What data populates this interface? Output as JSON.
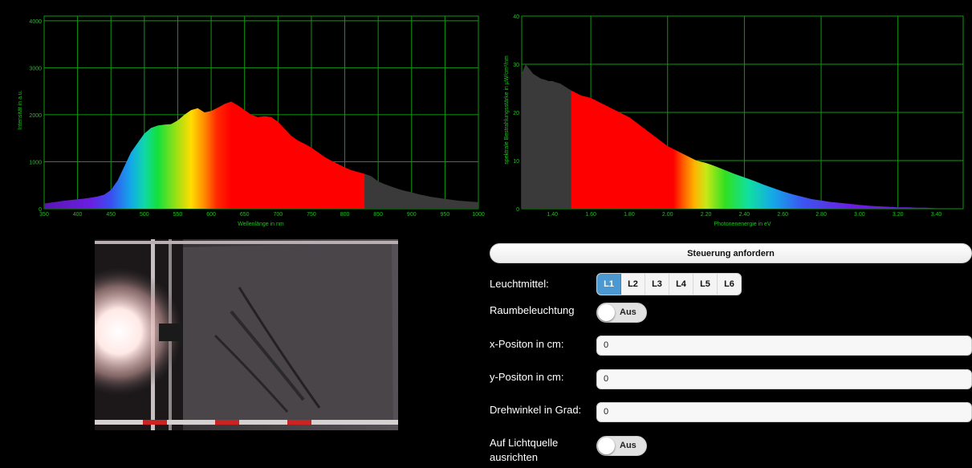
{
  "chart_data": [
    {
      "type": "area",
      "title": "",
      "xlabel": "Wellenlänge in nm",
      "ylabel": "Intensität in a.u.",
      "xlim": [
        350,
        1000
      ],
      "ylim": [
        0,
        4100
      ],
      "x_ticks": [
        "350",
        "400",
        "450",
        "500",
        "550",
        "600",
        "650",
        "700",
        "750",
        "800",
        "850",
        "900",
        "950",
        "1000"
      ],
      "y_ticks": [
        "0",
        "1000",
        "2000",
        "3000",
        "4000"
      ],
      "grid": true,
      "fill": "visible-spectrum rainbow gradient, dark grey beyond 830 nm",
      "x": [
        350,
        360,
        370,
        380,
        390,
        400,
        410,
        420,
        430,
        440,
        450,
        460,
        470,
        480,
        490,
        500,
        510,
        520,
        530,
        540,
        550,
        560,
        570,
        580,
        590,
        600,
        610,
        620,
        630,
        640,
        650,
        660,
        670,
        680,
        690,
        700,
        710,
        720,
        730,
        740,
        750,
        760,
        770,
        780,
        790,
        800,
        810,
        820,
        830,
        840,
        850,
        860,
        870,
        880,
        890,
        900,
        910,
        920,
        930,
        940,
        950,
        960,
        970,
        980,
        990,
        1000
      ],
      "values": [
        110,
        130,
        150,
        170,
        185,
        200,
        215,
        235,
        260,
        300,
        400,
        600,
        900,
        1200,
        1400,
        1600,
        1720,
        1770,
        1790,
        1800,
        1880,
        2000,
        2100,
        2140,
        2050,
        2080,
        2150,
        2230,
        2280,
        2200,
        2100,
        2000,
        1950,
        1970,
        1950,
        1850,
        1700,
        1550,
        1450,
        1380,
        1300,
        1200,
        1100,
        1020,
        950,
        880,
        820,
        780,
        740,
        690,
        580,
        520,
        470,
        420,
        380,
        350,
        310,
        280,
        250,
        230,
        210,
        190,
        170,
        160,
        150,
        140
      ]
    },
    {
      "type": "area",
      "title": "",
      "xlabel": "Photonenenergie in eV",
      "ylabel": "spektrale Bestrahlungsstärke in µW/cm²/nm",
      "xlim": [
        1.24,
        3.54
      ],
      "ylim": [
        0,
        40
      ],
      "x_ticks": [
        "1.40",
        "1.60",
        "1.80",
        "2.00",
        "2.20",
        "2.40",
        "2.60",
        "2.80",
        "3.00",
        "3.20",
        "3.40"
      ],
      "y_ticks": [
        "0",
        "10",
        "20",
        "30",
        "40"
      ],
      "grid": true,
      "fill": "dark grey below 1.50 eV, then red-to-violet spectrum",
      "x": [
        1.24,
        1.26,
        1.28,
        1.3,
        1.32,
        1.34,
        1.36,
        1.38,
        1.4,
        1.42,
        1.44,
        1.46,
        1.48,
        1.5,
        1.55,
        1.6,
        1.65,
        1.7,
        1.75,
        1.8,
        1.85,
        1.9,
        1.95,
        2.0,
        2.05,
        2.1,
        2.15,
        2.2,
        2.25,
        2.3,
        2.35,
        2.4,
        2.45,
        2.5,
        2.55,
        2.6,
        2.65,
        2.7,
        2.75,
        2.8,
        2.85,
        2.9,
        2.95,
        3.0,
        3.05,
        3.1,
        3.15,
        3.2,
        3.25,
        3.3,
        3.35,
        3.4,
        3.45,
        3.5,
        3.54
      ],
      "values": [
        28,
        30,
        29,
        28,
        27.5,
        27,
        26.8,
        26.5,
        26.5,
        26.2,
        26,
        25.5,
        25,
        24.5,
        23.5,
        23,
        22,
        21,
        20,
        19,
        17.5,
        16,
        14.5,
        13,
        12,
        11,
        10,
        9.5,
        8.8,
        8,
        7.2,
        6.5,
        5.8,
        5,
        4.3,
        3.6,
        3,
        2.5,
        2,
        1.7,
        1.4,
        1.2,
        1,
        0.8,
        0.6,
        0.5,
        0.4,
        0.3,
        0.3,
        0.2,
        0.2,
        0.1,
        0.1,
        0.1,
        0.1
      ]
    }
  ],
  "colors": {
    "grid": "#0e9a0e",
    "axis_text": "#1fc11f",
    "ir_fill": "#3a3a3a",
    "accent": "#4c98d0"
  },
  "controls": {
    "request_button": "Steuerung anfordern",
    "leuchtmittel_label": "Leuchtmittel:",
    "leuchtmittel_options": [
      "L1",
      "L2",
      "L3",
      "L4",
      "L5",
      "L6"
    ],
    "leuchtmittel_selected": "L1",
    "raum_label": "Raumbeleuchtung",
    "raum_toggle": "Aus",
    "xpos_label": "x-Positon in cm:",
    "xpos_value": "0",
    "ypos_label": "y-Positon in cm:",
    "ypos_value": "0",
    "dreh_label": "Drehwinkel in Grad:",
    "dreh_value": "0",
    "ausrichten_label_1": "Auf Lichtquelle",
    "ausrichten_label_2": "ausrichten",
    "ausrichten_toggle": "Aus"
  }
}
